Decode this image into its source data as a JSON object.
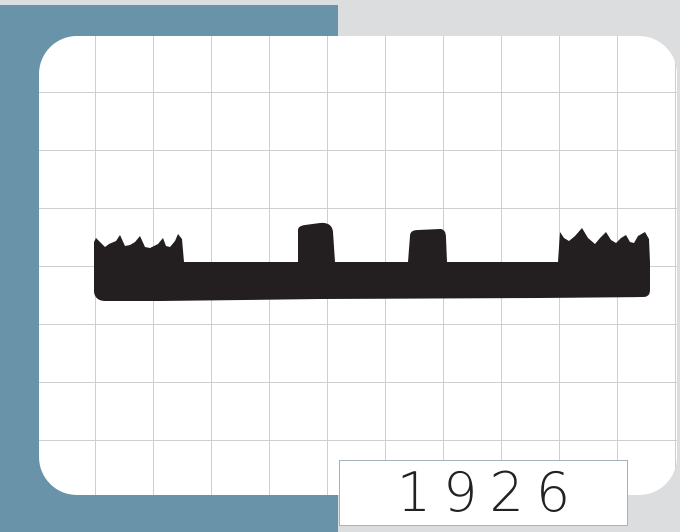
{
  "colors": {
    "page_background": "#dcdddf",
    "frame": "#6893a8",
    "card": "#ffffff",
    "grid_line": "#cdcfd2",
    "silhouette": "#231f20",
    "year_border": "#9fb3c1",
    "year_text": "#222222"
  },
  "card": {
    "year": "1926"
  }
}
